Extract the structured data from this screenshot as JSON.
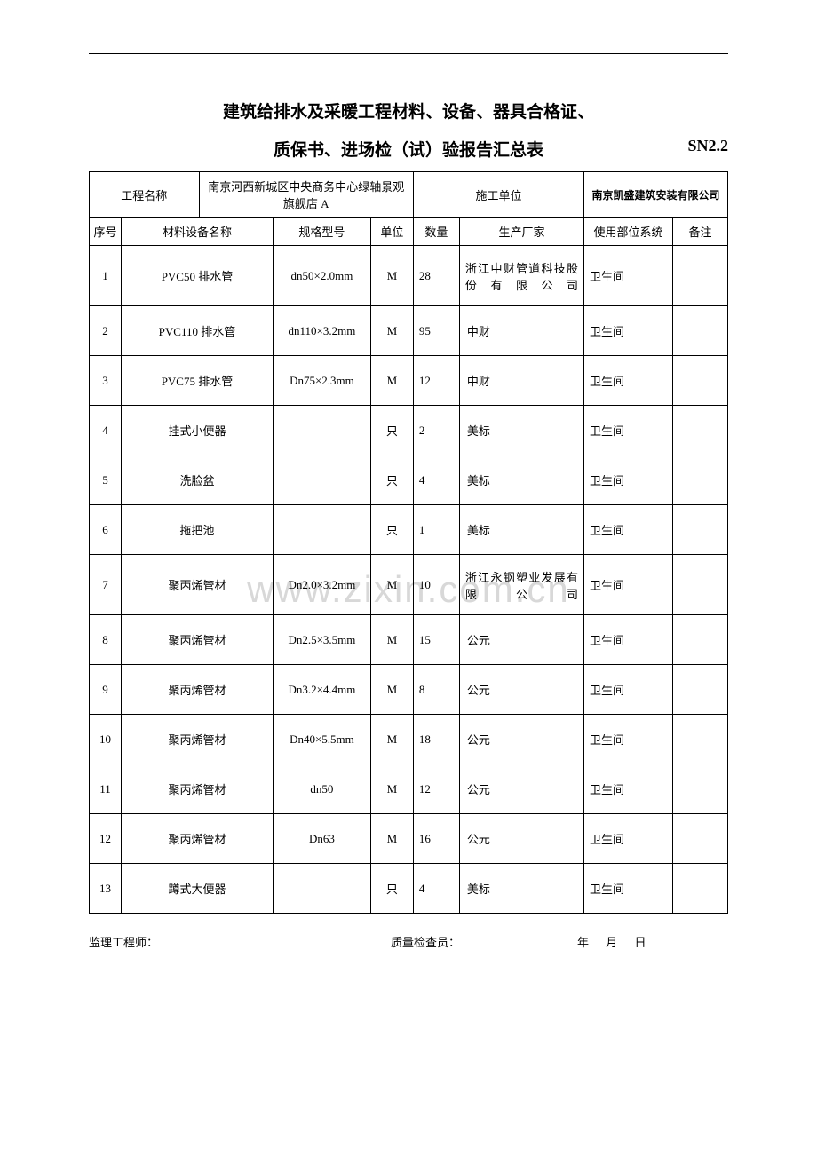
{
  "watermark": "www.zixin.com.cn",
  "title_line1": "建筑给排水及采暖工程材料、设备、器具合格证、",
  "title_line2": "质保书、进场检（试）验报告汇总表",
  "form_code": "SN2.2",
  "header": {
    "project_label": "工程名称",
    "project_name": "南京河西新城区中央商务中心绿轴景观旗舰店 A",
    "contractor_label": "施工单位",
    "contractor_name": "南京凯盛建筑安装有限公司"
  },
  "columns": {
    "seq": "序号",
    "name": "材料设备名称",
    "spec": "规格型号",
    "unit": "单位",
    "qty": "数量",
    "mfr": "生产厂家",
    "loc": "使用部位系统",
    "note": "备注"
  },
  "rows": [
    {
      "seq": "1",
      "name": "PVC50 排水管",
      "spec": "dn50×2.0mm",
      "unit": "M",
      "qty": "28",
      "mfr": "浙江中财管道科技股份有限公司",
      "loc": "卫生间",
      "note": "",
      "tall": true,
      "justify": true
    },
    {
      "seq": "2",
      "name": "PVC110 排水管",
      "spec": "dn110×3.2mm",
      "unit": "M",
      "qty": "95",
      "mfr": "中财",
      "loc": "卫生间",
      "note": ""
    },
    {
      "seq": "3",
      "name": "PVC75 排水管",
      "spec": "Dn75×2.3mm",
      "unit": "M",
      "qty": "12",
      "mfr": "中财",
      "loc": "卫生间",
      "note": ""
    },
    {
      "seq": "4",
      "name": "挂式小便器",
      "spec": "",
      "unit": "只",
      "qty": "2",
      "mfr": "美标",
      "loc": "卫生间",
      "note": ""
    },
    {
      "seq": "5",
      "name": "洗脸盆",
      "spec": "",
      "unit": "只",
      "qty": "4",
      "mfr": "美标",
      "loc": "卫生间",
      "note": ""
    },
    {
      "seq": "6",
      "name": "拖把池",
      "spec": "",
      "unit": "只",
      "qty": "1",
      "mfr": "美标",
      "loc": "卫生间",
      "note": ""
    },
    {
      "seq": "7",
      "name": "聚丙烯管材",
      "spec": "Dn2.0×3.2mm",
      "unit": "M",
      "qty": "10",
      "mfr": "浙江永钢塑业发展有限公司",
      "loc": "卫生间",
      "note": "",
      "tall": true,
      "justify": true
    },
    {
      "seq": "8",
      "name": "聚丙烯管材",
      "spec": "Dn2.5×3.5mm",
      "unit": "M",
      "qty": "15",
      "mfr": "公元",
      "loc": "卫生间",
      "note": ""
    },
    {
      "seq": "9",
      "name": "聚丙烯管材",
      "spec": "Dn3.2×4.4mm",
      "unit": "M",
      "qty": "8",
      "mfr": "公元",
      "loc": "卫生间",
      "note": ""
    },
    {
      "seq": "10",
      "name": "聚丙烯管材",
      "spec": "Dn40×5.5mm",
      "unit": "M",
      "qty": "18",
      "mfr": "公元",
      "loc": "卫生间",
      "note": ""
    },
    {
      "seq": "11",
      "name": "聚丙烯管材",
      "spec": "dn50",
      "unit": "M",
      "qty": "12",
      "mfr": "公元",
      "loc": "卫生间",
      "note": ""
    },
    {
      "seq": "12",
      "name": "聚丙烯管材",
      "spec": "Dn63",
      "unit": "M",
      "qty": "16",
      "mfr": "公元",
      "loc": "卫生间",
      "note": ""
    },
    {
      "seq": "13",
      "name": "蹲式大便器",
      "spec": "",
      "unit": "只",
      "qty": "4",
      "mfr": "美标",
      "loc": "卫生间",
      "note": ""
    }
  ],
  "footer": {
    "supervisor": "监理工程师：",
    "inspector": "质量检查员：",
    "date": "年 月 日"
  }
}
